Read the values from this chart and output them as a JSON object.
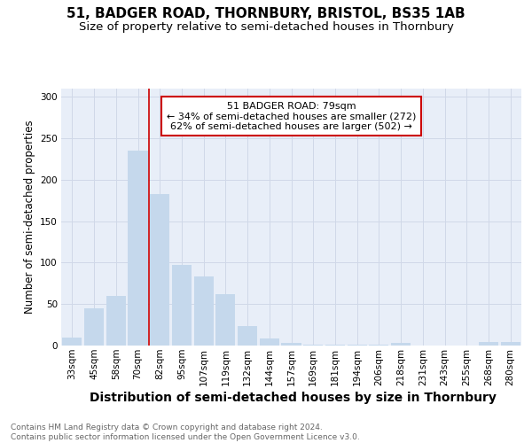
{
  "title": "51, BADGER ROAD, THORNBURY, BRISTOL, BS35 1AB",
  "subtitle": "Size of property relative to semi-detached houses in Thornbury",
  "xlabel": "Distribution of semi-detached houses by size in Thornbury",
  "ylabel": "Number of semi-detached properties",
  "categories": [
    "33sqm",
    "45sqm",
    "58sqm",
    "70sqm",
    "82sqm",
    "95sqm",
    "107sqm",
    "119sqm",
    "132sqm",
    "144sqm",
    "157sqm",
    "169sqm",
    "181sqm",
    "194sqm",
    "206sqm",
    "218sqm",
    "231sqm",
    "243sqm",
    "255sqm",
    "268sqm",
    "280sqm"
  ],
  "values": [
    10,
    45,
    60,
    235,
    183,
    97,
    83,
    62,
    23,
    9,
    3,
    1,
    1,
    1,
    1,
    3,
    0,
    0,
    0,
    4,
    4
  ],
  "bar_color": "#c5d8ec",
  "bar_edge_color": "#c5d8ec",
  "vline_x": 3.5,
  "vline_color": "#cc0000",
  "annotation_line1": "51 BADGER ROAD: 79sqm",
  "annotation_line2": "← 34% of semi-detached houses are smaller (272)",
  "annotation_line3": "62% of semi-detached houses are larger (502) →",
  "annotation_box_color": "#ffffff",
  "annotation_box_edge": "#cc0000",
  "ylim": [
    0,
    310
  ],
  "yticks": [
    0,
    50,
    100,
    150,
    200,
    250,
    300
  ],
  "grid_color": "#d0d8e8",
  "bg_color": "#e8eef8",
  "footer": "Contains HM Land Registry data © Crown copyright and database right 2024.\nContains public sector information licensed under the Open Government Licence v3.0.",
  "title_fontsize": 11,
  "subtitle_fontsize": 9.5,
  "xlabel_fontsize": 10,
  "ylabel_fontsize": 8.5,
  "tick_fontsize": 7.5,
  "annotation_fontsize": 8,
  "footer_fontsize": 6.5
}
